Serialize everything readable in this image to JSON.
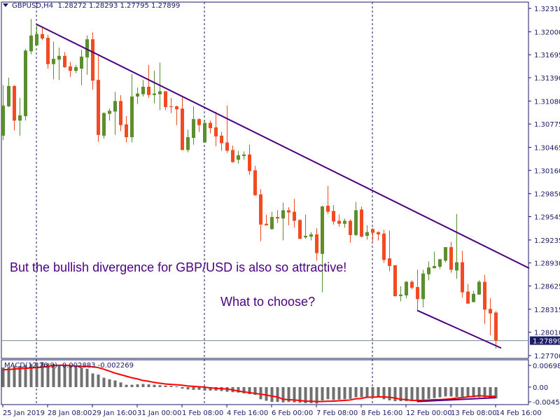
{
  "header": {
    "symbol": "GBPUSD,H4",
    "ohlc": "1.28272 1.28293 1.27795 1.27899"
  },
  "macd": {
    "label": "MACD(12,26,9) -0.002883 -0.002269",
    "axis_labels": [
      "0.006982",
      "0.00",
      "-0.004545"
    ]
  },
  "annotations": [
    "But the bullish divergence for GBP/USD is also so attractive!",
    "What to choose?"
  ],
  "colors": {
    "bull": "#5b8f2e",
    "bear": "#f24b22",
    "trendline": "#4b0082",
    "border": "#1a1a66",
    "histogram": "#707070",
    "signal": "#ff0000",
    "price_line": "#7a8899",
    "price_label_bg": "#1a1a66"
  },
  "chart_data": [
    {
      "type": "candlestick",
      "title": "GBPUSD,H4",
      "ylim": [
        1.277,
        1.3231
      ],
      "y_ticks": [
        "1.32310",
        "1.32000",
        "1.31695",
        "1.31390",
        "1.31080",
        "1.30775",
        "1.30465",
        "1.30160",
        "1.29850",
        "1.29545",
        "1.29235",
        "1.28930",
        "1.28625",
        "1.28315",
        "1.28010",
        "1.27700"
      ],
      "current_price": "1.27899",
      "x_tick_labels": [
        "25 Jan 2019",
        "28 Jan 08:00",
        "29 Jan 16:00",
        "31 Jan 00:00",
        "1 Feb 08:00",
        "4 Feb 16:00",
        "6 Feb 00:00",
        "7 Feb 08:00",
        "8 Feb 16:00",
        "12 Feb 00:00",
        "13 Feb 08:00",
        "14 Feb 16:00"
      ],
      "x_tick_bar_every": 8,
      "period_separators_at_bar": [
        7,
        37,
        67
      ],
      "ohlc_columns": [
        "open",
        "high",
        "low",
        "close"
      ],
      "candles": [
        [
          1.3062,
          1.3129,
          1.3056,
          1.3102
        ],
        [
          1.3101,
          1.3139,
          1.31,
          1.3128
        ],
        [
          1.3128,
          1.3129,
          1.3069,
          1.3082
        ],
        [
          1.3082,
          1.3112,
          1.3062,
          1.3089
        ],
        [
          1.3088,
          1.3177,
          1.3082,
          1.3175
        ],
        [
          1.3174,
          1.3217,
          1.317,
          1.3195
        ],
        [
          1.3182,
          1.3211,
          1.3181,
          1.3197
        ],
        [
          1.3197,
          1.3207,
          1.3189,
          1.3191
        ],
        [
          1.3192,
          1.3196,
          1.3151,
          1.3157
        ],
        [
          1.3157,
          1.3187,
          1.3137,
          1.3164
        ],
        [
          1.3163,
          1.3179,
          1.3136,
          1.3168
        ],
        [
          1.3168,
          1.3173,
          1.3152,
          1.3153
        ],
        [
          1.3154,
          1.316,
          1.314,
          1.3148
        ],
        [
          1.3148,
          1.3156,
          1.3145,
          1.3153
        ],
        [
          1.3151,
          1.3176,
          1.3129,
          1.3167
        ],
        [
          1.3166,
          1.3195,
          1.3143,
          1.319
        ],
        [
          1.319,
          1.3199,
          1.3123,
          1.3135
        ],
        [
          1.3136,
          1.3168,
          1.3054,
          1.3063
        ],
        [
          1.3062,
          1.3093,
          1.3058,
          1.3092
        ],
        [
          1.3091,
          1.3098,
          1.3082,
          1.3095
        ],
        [
          1.3094,
          1.312,
          1.3063,
          1.3108
        ],
        [
          1.3108,
          1.3116,
          1.3068,
          1.3076
        ],
        [
          1.3077,
          1.3088,
          1.3053,
          1.306
        ],
        [
          1.306,
          1.3144,
          1.3053,
          1.3114
        ],
        [
          1.3114,
          1.3126,
          1.3104,
          1.3118
        ],
        [
          1.3117,
          1.3136,
          1.3114,
          1.3127
        ],
        [
          1.3127,
          1.3156,
          1.3112,
          1.3116
        ],
        [
          1.3116,
          1.3148,
          1.3105,
          1.3118
        ],
        [
          1.3117,
          1.3159,
          1.3096,
          1.3121
        ],
        [
          1.3121,
          1.3121,
          1.3096,
          1.31
        ],
        [
          1.3101,
          1.3112,
          1.3092,
          1.31
        ],
        [
          1.3101,
          1.3102,
          1.3076,
          1.3097
        ],
        [
          1.3098,
          1.3115,
          1.3043,
          1.3043
        ],
        [
          1.3043,
          1.307,
          1.304,
          1.306
        ],
        [
          1.3059,
          1.3101,
          1.305,
          1.3084
        ],
        [
          1.3084,
          1.3085,
          1.3067,
          1.3076
        ],
        [
          1.3053,
          1.3082,
          1.3053,
          1.3079
        ],
        [
          1.3079,
          1.3082,
          1.3065,
          1.3072
        ],
        [
          1.3073,
          1.3094,
          1.3048,
          1.3061
        ],
        [
          1.3062,
          1.3067,
          1.3042,
          1.3052
        ],
        [
          1.3053,
          1.3102,
          1.3039,
          1.3042
        ],
        [
          1.3043,
          1.3049,
          1.3026,
          1.3027
        ],
        [
          1.303,
          1.3042,
          1.3025,
          1.3036
        ],
        [
          1.3035,
          1.3041,
          1.303,
          1.3037
        ],
        [
          1.3037,
          1.305,
          1.301,
          1.3015
        ],
        [
          1.3016,
          1.3022,
          1.2982,
          1.2983
        ],
        [
          1.2984,
          1.2991,
          1.2922,
          1.2944
        ],
        [
          1.2945,
          1.2957,
          1.2943,
          1.2943
        ],
        [
          1.2938,
          1.2961,
          1.2937,
          1.2954
        ],
        [
          1.2954,
          1.2963,
          1.2946,
          1.2952
        ],
        [
          1.2952,
          1.2973,
          1.2923,
          1.2963
        ],
        [
          1.2963,
          1.2967,
          1.2943,
          1.296
        ],
        [
          1.2961,
          1.2978,
          1.294,
          1.2949
        ],
        [
          1.295,
          1.2951,
          1.2925,
          1.2925
        ],
        [
          1.2927,
          1.2957,
          1.2925,
          1.2929
        ],
        [
          1.2928,
          1.2934,
          1.2923,
          1.2931
        ],
        [
          1.2931,
          1.2939,
          1.2896,
          1.2906
        ],
        [
          1.2905,
          1.2969,
          1.2854,
          1.2968
        ],
        [
          1.2969,
          1.2995,
          1.2958,
          1.2961
        ],
        [
          1.2962,
          1.297,
          1.2944,
          1.2948
        ],
        [
          1.2949,
          1.2957,
          1.2941,
          1.2945
        ],
        [
          1.2945,
          1.2952,
          1.294,
          1.2949
        ],
        [
          1.2949,
          1.2951,
          1.292,
          1.293
        ],
        [
          1.293,
          1.2974,
          1.2929,
          1.2963
        ],
        [
          1.2964,
          1.2968,
          1.2927,
          1.2928
        ],
        [
          1.2929,
          1.2943,
          1.2924,
          1.2934
        ],
        [
          1.2938,
          1.294,
          1.2921,
          1.2933
        ],
        [
          1.2934,
          1.2935,
          1.2923,
          1.2931
        ],
        [
          1.2932,
          1.2937,
          1.2893,
          1.2897
        ],
        [
          1.2899,
          1.2936,
          1.2882,
          1.2889
        ],
        [
          1.289,
          1.289,
          1.2848,
          1.2849
        ],
        [
          1.2849,
          1.2862,
          1.2842,
          1.2851
        ],
        [
          1.285,
          1.2869,
          1.2846,
          1.2868
        ],
        [
          1.2868,
          1.287,
          1.2858,
          1.286
        ],
        [
          1.2861,
          1.2884,
          1.283,
          1.2845
        ],
        [
          1.2845,
          1.2884,
          1.2834,
          1.2879
        ],
        [
          1.2878,
          1.2895,
          1.287,
          1.2887
        ],
        [
          1.2886,
          1.2908,
          1.2886,
          1.2889
        ],
        [
          1.2888,
          1.2898,
          1.2885,
          1.2898
        ],
        [
          1.2896,
          1.2914,
          1.2894,
          1.2914
        ],
        [
          1.2914,
          1.2921,
          1.288,
          1.2884
        ],
        [
          1.2883,
          1.2958,
          1.2872,
          1.2894
        ],
        [
          1.2894,
          1.2909,
          1.2847,
          1.2854
        ],
        [
          1.2855,
          1.2865,
          1.2839,
          1.2839
        ],
        [
          1.2841,
          1.2856,
          1.2841,
          1.2852
        ],
        [
          1.2851,
          1.287,
          1.2851,
          1.2868
        ],
        [
          1.2868,
          1.2877,
          1.2812,
          1.2831
        ],
        [
          1.2832,
          1.2846,
          1.2797,
          1.2826
        ],
        [
          1.28272,
          1.28293,
          1.27795,
          1.27899
        ]
      ],
      "trendlines": [
        {
          "from": {
            "bar": 7,
            "price": 1.321
          },
          "to": {
            "bar": 95,
            "price": 1.2886
          }
        },
        {
          "from": {
            "bar": 75,
            "price": 1.283
          },
          "to": {
            "bar": 90,
            "price": 1.278
          }
        }
      ]
    },
    {
      "type": "bar+line",
      "title": "MACD(12,26,9)",
      "ylim": [
        -0.0045,
        0.007
      ],
      "histogram": [
        0.005,
        0.0051,
        0.0053,
        0.0054,
        0.0056,
        0.0059,
        0.0063,
        0.0064,
        0.0061,
        0.0059,
        0.0057,
        0.0056,
        0.0054,
        0.0051,
        0.005,
        0.0047,
        0.0035,
        0.0032,
        0.0024,
        0.002,
        0.0017,
        0.0012,
        0.0006,
        0.0006,
        0.0007,
        0.0008,
        0.0007,
        0.0006,
        0.0005,
        0.0004,
        0.0003,
        0.0002,
        -0.0004,
        -0.0006,
        -0.0007,
        -0.0007,
        -0.0009,
        -0.0009,
        -0.0009,
        -0.001,
        -0.0012,
        -0.0013,
        -0.0014,
        -0.0016,
        -0.0018,
        -0.002,
        -0.0031,
        -0.0035,
        -0.0038,
        -0.0038,
        -0.0039,
        -0.0038,
        -0.0039,
        -0.004,
        -0.0041,
        -0.0041,
        -0.0042,
        -0.0034,
        -0.0031,
        -0.0033,
        -0.0032,
        -0.0031,
        -0.003,
        -0.0026,
        -0.0026,
        -0.0025,
        -0.0025,
        -0.0026,
        -0.0031,
        -0.0034,
        -0.0036,
        -0.0036,
        -0.0036,
        -0.0034,
        -0.0037,
        -0.0032,
        -0.003,
        -0.0028,
        -0.0026,
        -0.0024,
        -0.0024,
        -0.0025,
        -0.0025,
        -0.0026,
        -0.0026,
        -0.0026,
        -0.0026,
        -0.0026,
        -0.0029
      ],
      "signal": [
        0.0044,
        0.0045,
        0.0046,
        0.0047,
        0.0048,
        0.0049,
        0.005,
        0.0051,
        0.0053,
        0.0055,
        0.0056,
        0.0056,
        0.0055,
        0.0054,
        0.0053,
        0.0053,
        0.0052,
        0.005,
        0.0046,
        0.0041,
        0.0036,
        0.0032,
        0.0028,
        0.0024,
        0.0021,
        0.0017,
        0.0015,
        0.0012,
        0.001,
        0.0008,
        0.0007,
        0.0006,
        0.0005,
        0.0003,
        0.0002,
        0.0001,
        0.0,
        -0.0002,
        -0.0003,
        -0.0004,
        -0.0005,
        -0.0007,
        -0.001,
        -0.0012,
        -0.0014,
        -0.0016,
        -0.0018,
        -0.002,
        -0.0023,
        -0.0025,
        -0.0031,
        -0.0032,
        -0.0033,
        -0.0034,
        -0.0036,
        -0.0036,
        -0.0037,
        -0.0037,
        -0.0036,
        -0.0036,
        -0.0035,
        -0.0034,
        -0.0033,
        -0.003,
        -0.0029,
        -0.0026,
        -0.0026,
        -0.0025,
        -0.0025,
        -0.0026,
        -0.0028,
        -0.0031,
        -0.0032,
        -0.0034,
        -0.0034,
        -0.0034,
        -0.0033,
        -0.0032,
        -0.0032,
        -0.0031,
        -0.003,
        -0.0028,
        -0.0027,
        -0.0025,
        -0.0024,
        -0.0022,
        -0.0023,
        -0.0024,
        -0.0023
      ],
      "trendlines": [
        {
          "from": {
            "bar": 75,
            "value": -0.0037
          },
          "to": {
            "bar": 89,
            "value": -0.0027
          }
        }
      ]
    }
  ]
}
